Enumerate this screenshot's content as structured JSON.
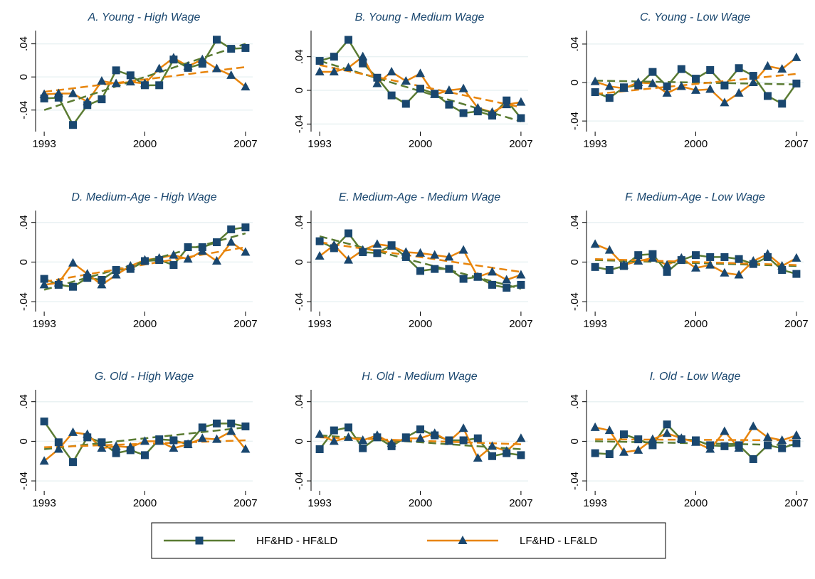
{
  "legend": {
    "series": [
      {
        "name": "HF&HD - HF&LD",
        "color": "#5a7b32",
        "marker": "square"
      },
      {
        "name": "LF&HD - LF&LD",
        "color": "#e8850c",
        "marker": "triangle"
      }
    ],
    "marker_color": "#1a476f"
  },
  "chart_data": [
    {
      "type": "line",
      "title": "A. Young - High Wage",
      "x": [
        1993,
        1994,
        1995,
        1996,
        1997,
        1998,
        1999,
        2000,
        2001,
        2002,
        2003,
        2004,
        2005,
        2006,
        2007
      ],
      "xlim": [
        1992.4,
        2007.5
      ],
      "xticks": [
        1993,
        2000,
        2007
      ],
      "ylim": [
        -0.066,
        0.056
      ],
      "yticks": [
        {
          "value": -0.04,
          "label": "-.04"
        },
        0,
        {
          "value": 0.04,
          "label": ".04"
        }
      ],
      "grid": true,
      "series": [
        {
          "values": [
            -0.026,
            -0.025,
            -0.058,
            -0.034,
            -0.027,
            0.008,
            0.002,
            -0.01,
            -0.01,
            0.021,
            0.011,
            0.016,
            0.045,
            0.034,
            0.035
          ],
          "trend": [
            -0.04,
            0.04
          ]
        },
        {
          "values": [
            -0.021,
            -0.02,
            -0.02,
            -0.03,
            -0.005,
            -0.008,
            -0.006,
            -0.008,
            0.01,
            0.023,
            0.013,
            0.021,
            0.01,
            0.002,
            -0.012
          ],
          "trend": [
            -0.018,
            0.012
          ]
        }
      ]
    },
    {
      "type": "line",
      "title": "B. Young - Medium Wage",
      "x": [
        1993,
        1994,
        1995,
        1996,
        1997,
        1998,
        1999,
        2000,
        2001,
        2002,
        2003,
        2004,
        2005,
        2006,
        2007
      ],
      "xlim": [
        1992.4,
        2007.5
      ],
      "xticks": [
        1993,
        2000,
        2007
      ],
      "ylim": [
        -0.049,
        0.071
      ],
      "yticks": [
        {
          "value": -0.04,
          "label": "-.04"
        },
        0,
        {
          "value": 0.04,
          "label": ".04"
        }
      ],
      "grid": true,
      "series": [
        {
          "values": [
            0.035,
            0.04,
            0.06,
            0.032,
            0.015,
            -0.006,
            -0.016,
            0.002,
            -0.004,
            -0.017,
            -0.027,
            -0.025,
            -0.03,
            -0.012,
            -0.033
          ],
          "trend": [
            0.035,
            -0.037
          ]
        },
        {
          "values": [
            0.022,
            0.022,
            0.027,
            0.04,
            0.008,
            0.022,
            0.011,
            0.02,
            -0.005,
            0.0,
            0.002,
            -0.021,
            -0.026,
            -0.017,
            -0.014
          ],
          "trend": [
            0.03,
            -0.02
          ]
        }
      ]
    },
    {
      "type": "line",
      "title": "C. Young - Low Wage",
      "x": [
        1993,
        1994,
        1995,
        1996,
        1997,
        1998,
        1999,
        2000,
        2001,
        2002,
        2003,
        2004,
        2005,
        2006,
        2007
      ],
      "xlim": [
        1992.4,
        2007.5
      ],
      "xticks": [
        1993,
        2000,
        2007
      ],
      "ylim": [
        -0.051,
        0.054
      ],
      "yticks": [
        {
          "value": -0.04,
          "label": "-.04"
        },
        0,
        {
          "value": 0.04,
          "label": ".04"
        }
      ],
      "grid": true,
      "series": [
        {
          "values": [
            -0.01,
            -0.016,
            -0.005,
            -0.003,
            0.011,
            -0.004,
            0.014,
            0.004,
            0.013,
            -0.003,
            0.015,
            0.007,
            -0.014,
            -0.022,
            -0.001
          ],
          "trend": [
            0.002,
            -0.002
          ]
        },
        {
          "values": [
            0.001,
            -0.004,
            -0.006,
            0.0,
            -0.001,
            -0.011,
            -0.004,
            -0.008,
            -0.007,
            -0.021,
            -0.011,
            0.0,
            0.017,
            0.014,
            0.026
          ],
          "trend": [
            -0.012,
            0.009
          ]
        }
      ]
    },
    {
      "type": "line",
      "title": "D. Medium-Age - High Wage",
      "x": [
        1993,
        1994,
        1995,
        1996,
        1997,
        1998,
        1999,
        2000,
        2001,
        2002,
        2003,
        2004,
        2005,
        2006,
        2007
      ],
      "xlim": [
        1992.4,
        2007.5
      ],
      "xticks": [
        1993,
        2000,
        2007
      ],
      "ylim": [
        -0.05,
        0.052
      ],
      "yticks": [
        {
          "value": -0.04,
          "label": "-.04"
        },
        0,
        {
          "value": 0.04,
          "label": ".04"
        }
      ],
      "grid": true,
      "series": [
        {
          "values": [
            -0.017,
            -0.023,
            -0.025,
            -0.016,
            -0.018,
            -0.008,
            -0.007,
            0.001,
            0.002,
            -0.003,
            0.015,
            0.015,
            0.02,
            0.033,
            0.035
          ],
          "trend": [
            -0.028,
            0.029
          ]
        },
        {
          "values": [
            -0.023,
            -0.021,
            -0.001,
            -0.012,
            -0.023,
            -0.013,
            -0.004,
            0.002,
            0.004,
            0.007,
            0.003,
            0.011,
            0.001,
            0.02,
            0.01
          ],
          "trend": [
            -0.02,
            0.015
          ]
        }
      ]
    },
    {
      "type": "line",
      "title": "E. Medium-Age - Medium Wage",
      "x": [
        1993,
        1994,
        1995,
        1996,
        1997,
        1998,
        1999,
        2000,
        2001,
        2002,
        2003,
        2004,
        2005,
        2006,
        2007
      ],
      "xlim": [
        1992.4,
        2007.5
      ],
      "xticks": [
        1993,
        2000,
        2007
      ],
      "ylim": [
        -0.05,
        0.052
      ],
      "yticks": [
        {
          "value": -0.04,
          "label": "-.04"
        },
        0,
        {
          "value": 0.04,
          "label": ".04"
        }
      ],
      "grid": true,
      "series": [
        {
          "values": [
            0.021,
            0.014,
            0.029,
            0.01,
            0.009,
            0.017,
            0.005,
            -0.009,
            -0.007,
            -0.007,
            -0.017,
            -0.015,
            -0.023,
            -0.026,
            -0.023
          ],
          "trend": [
            0.026,
            -0.027
          ]
        },
        {
          "values": [
            0.006,
            0.017,
            0.002,
            0.012,
            0.018,
            0.016,
            0.01,
            0.009,
            0.007,
            0.005,
            0.012,
            -0.015,
            -0.01,
            -0.018,
            -0.013
          ],
          "trend": [
            0.02,
            -0.01
          ]
        }
      ]
    },
    {
      "type": "line",
      "title": "F. Medium-Age - Low Wage",
      "x": [
        1993,
        1994,
        1995,
        1996,
        1997,
        1998,
        1999,
        2000,
        2001,
        2002,
        2003,
        2004,
        2005,
        2006,
        2007
      ],
      "xlim": [
        1992.4,
        2007.5
      ],
      "xticks": [
        1993,
        2000,
        2007
      ],
      "ylim": [
        -0.05,
        0.052
      ],
      "yticks": [
        {
          "value": -0.04,
          "label": "-.04"
        },
        0,
        {
          "value": 0.04,
          "label": ".04"
        }
      ],
      "grid": true,
      "series": [
        {
          "values": [
            -0.005,
            -0.008,
            -0.004,
            0.007,
            0.008,
            -0.01,
            0.002,
            0.007,
            0.005,
            0.005,
            0.003,
            -0.002,
            0.005,
            -0.008,
            -0.012
          ],
          "trend": [
            0.002,
            -0.004
          ]
        },
        {
          "values": [
            0.018,
            0.012,
            -0.003,
            0.001,
            0.004,
            -0.003,
            0.004,
            -0.006,
            -0.003,
            -0.011,
            -0.013,
            0.001,
            0.008,
            -0.004,
            0.004
          ],
          "trend": [
            0.003,
            -0.003
          ]
        }
      ]
    },
    {
      "type": "line",
      "title": "G. Old - High Wage",
      "x": [
        1993,
        1994,
        1995,
        1996,
        1997,
        1998,
        1999,
        2000,
        2001,
        2002,
        2003,
        2004,
        2005,
        2006,
        2007
      ],
      "xlim": [
        1992.4,
        2007.5
      ],
      "xticks": [
        1993,
        2000,
        2007
      ],
      "ylim": [
        -0.05,
        0.052
      ],
      "yticks": [
        {
          "value": -0.04,
          "label": "-.04"
        },
        0,
        {
          "value": 0.04,
          "label": ".04"
        }
      ],
      "grid": true,
      "series": [
        {
          "values": [
            0.02,
            -0.001,
            -0.021,
            0.004,
            -0.001,
            -0.012,
            -0.009,
            -0.014,
            0.002,
            0.001,
            -0.003,
            0.014,
            0.018,
            0.018,
            0.015
          ],
          "trend": [
            -0.008,
            0.014
          ]
        },
        {
          "values": [
            -0.02,
            -0.008,
            0.009,
            0.007,
            -0.007,
            -0.005,
            -0.006,
            0.0,
            0.0,
            -0.007,
            -0.003,
            0.003,
            0.002,
            0.01,
            -0.008
          ],
          "trend": [
            -0.006,
            0.001
          ]
        }
      ]
    },
    {
      "type": "line",
      "title": "H. Old - Medium Wage",
      "x": [
        1993,
        1994,
        1995,
        1996,
        1997,
        1998,
        1999,
        2000,
        2001,
        2002,
        2003,
        2004,
        2005,
        2006,
        2007
      ],
      "xlim": [
        1992.4,
        2007.5
      ],
      "xticks": [
        1993,
        2000,
        2007
      ],
      "ylim": [
        -0.05,
        0.052
      ],
      "yticks": [
        {
          "value": -0.04,
          "label": "-.04"
        },
        0,
        {
          "value": 0.04,
          "label": ".04"
        }
      ],
      "grid": true,
      "series": [
        {
          "values": [
            -0.008,
            0.011,
            0.014,
            -0.007,
            0.004,
            -0.005,
            0.004,
            0.012,
            0.006,
            0.001,
            0.001,
            0.003,
            -0.015,
            -0.012,
            -0.014
          ],
          "trend": [
            0.006,
            -0.008
          ]
        },
        {
          "values": [
            0.007,
            0.0,
            0.004,
            0.001,
            0.006,
            -0.002,
            0.003,
            0.003,
            0.008,
            0.0,
            0.013,
            -0.017,
            -0.005,
            -0.01,
            0.003
          ],
          "trend": [
            0.004,
            -0.003
          ]
        }
      ]
    },
    {
      "type": "line",
      "title": "I. Old - Low Wage",
      "x": [
        1993,
        1994,
        1995,
        1996,
        1997,
        1998,
        1999,
        2000,
        2001,
        2002,
        2003,
        2004,
        2005,
        2006,
        2007
      ],
      "xlim": [
        1992.4,
        2007.5
      ],
      "xticks": [
        1993,
        2000,
        2007
      ],
      "ylim": [
        -0.05,
        0.052
      ],
      "yticks": [
        {
          "value": -0.04,
          "label": "-.04"
        },
        0,
        {
          "value": 0.04,
          "label": ".04"
        }
      ],
      "grid": true,
      "series": [
        {
          "values": [
            -0.012,
            -0.013,
            0.007,
            0.002,
            -0.004,
            0.017,
            0.002,
            0.001,
            -0.004,
            -0.005,
            -0.004,
            -0.018,
            -0.004,
            -0.007,
            -0.002
          ],
          "trend": [
            0.0,
            -0.004
          ]
        },
        {
          "values": [
            0.014,
            0.011,
            -0.011,
            -0.009,
            0.002,
            0.008,
            0.003,
            -0.001,
            -0.008,
            0.01,
            -0.007,
            0.015,
            0.004,
            0.001,
            0.006
          ],
          "trend": [
            0.002,
            0.001
          ]
        }
      ]
    }
  ]
}
